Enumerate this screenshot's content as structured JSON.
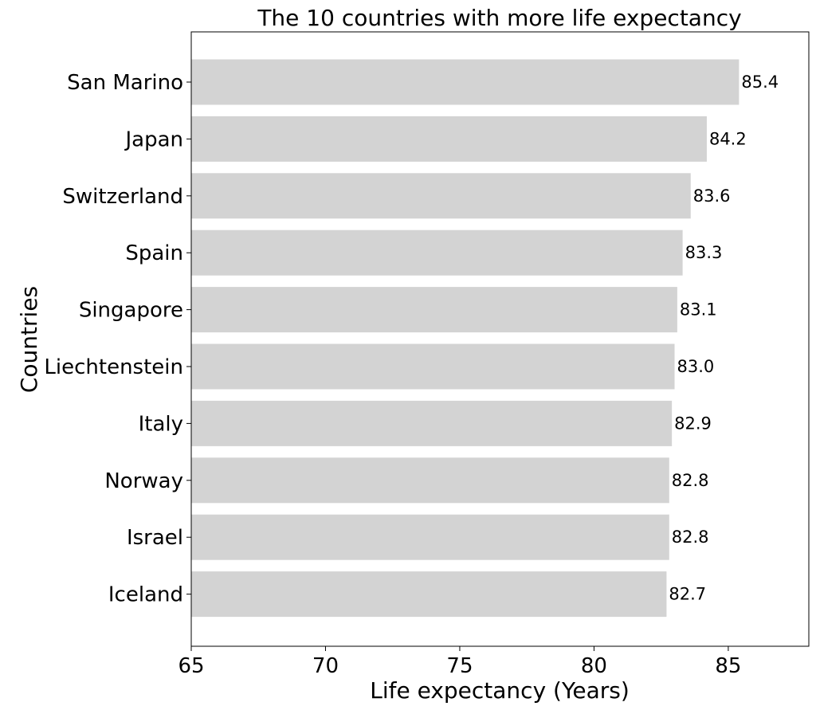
{
  "chart_data": {
    "type": "bar",
    "orientation": "horizontal",
    "title": "The 10 countries with more life expectancy",
    "xlabel": "Life expectancy (Years)",
    "ylabel": "Countries",
    "xlim": [
      65,
      88
    ],
    "xticks": [
      65,
      70,
      75,
      80,
      85
    ],
    "categories": [
      "San Marino",
      "Japan",
      "Switzerland",
      "Spain",
      "Singapore",
      "Liechtenstein",
      "Italy",
      "Norway",
      "Israel",
      "Iceland"
    ],
    "values": [
      85.4,
      84.2,
      83.6,
      83.3,
      83.1,
      83.0,
      82.9,
      82.8,
      82.8,
      82.7
    ],
    "value_labels": [
      "85.4",
      "84.2",
      "83.6",
      "83.3",
      "83.1",
      "83.0",
      "82.9",
      "82.8",
      "82.8",
      "82.7"
    ],
    "bar_color": "#d3d3d3",
    "grid": false,
    "legend": "none"
  }
}
